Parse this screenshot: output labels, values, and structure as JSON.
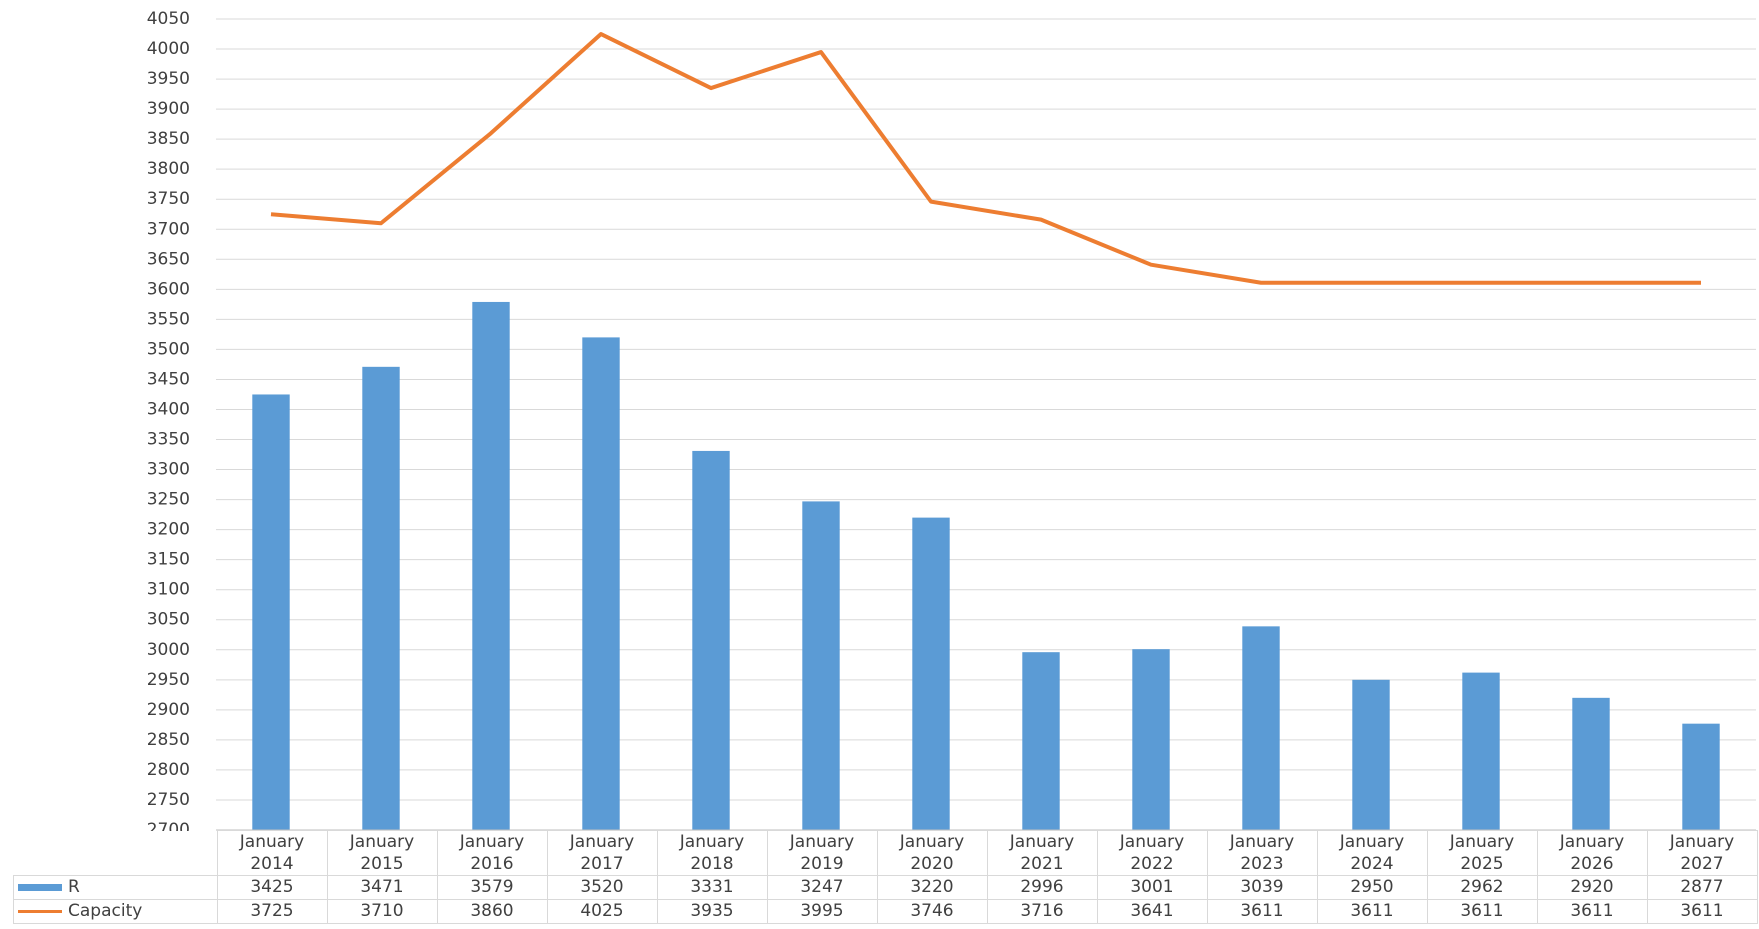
{
  "chart_data": {
    "type": "bar",
    "categories": [
      "January 2014",
      "January 2015",
      "January 2016",
      "January 2017",
      "January 2018",
      "January 2019",
      "January 2020",
      "January 2021",
      "January 2022",
      "January 2023",
      "January 2024",
      "January 2025",
      "January 2026",
      "January 2027"
    ],
    "series": [
      {
        "name": "R",
        "type": "bar",
        "color": "#5b9bd5",
        "values": [
          3425,
          3471,
          3579,
          3520,
          3331,
          3247,
          3220,
          2996,
          3001,
          3039,
          2950,
          2962,
          2920,
          2877
        ]
      },
      {
        "name": "Capacity",
        "type": "line",
        "color": "#ed7d31",
        "values": [
          3725,
          3710,
          3860,
          4025,
          3935,
          3995,
          3746,
          3716,
          3641,
          3611,
          3611,
          3611,
          3611,
          3611
        ]
      }
    ],
    "ylim": [
      2700,
      4050
    ],
    "yticks": [
      2700,
      2750,
      2800,
      2850,
      2900,
      2950,
      3000,
      3050,
      3100,
      3150,
      3200,
      3250,
      3300,
      3350,
      3400,
      3450,
      3500,
      3550,
      3600,
      3650,
      3700,
      3750,
      3800,
      3850,
      3900,
      3950,
      4000,
      4050
    ],
    "grid": true
  }
}
